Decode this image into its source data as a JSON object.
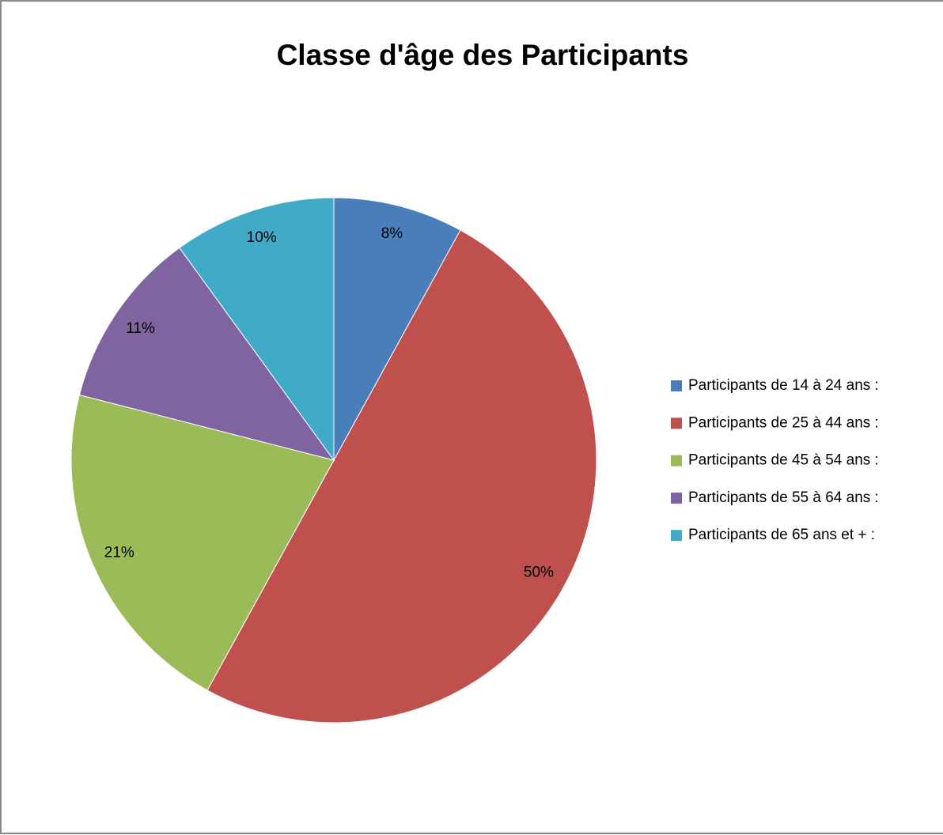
{
  "chart_data": {
    "type": "pie",
    "title": "Classe d'âge des Participants",
    "categories": [
      "Participants de 14 à 24 ans :",
      "Participants de 25 à 44 ans :",
      "Participants de 45 à 54 ans :",
      "Participants de 55 à 64 ans :",
      "Participants de 65 ans et + :"
    ],
    "values": [
      8,
      50,
      21,
      11,
      10
    ],
    "value_labels": [
      "8%",
      "50%",
      "21%",
      "11%",
      "10%"
    ],
    "colors": [
      "#4a7ebb",
      "#c0504d",
      "#9bbb59",
      "#8064a2",
      "#41abc7"
    ],
    "legend": "right"
  }
}
